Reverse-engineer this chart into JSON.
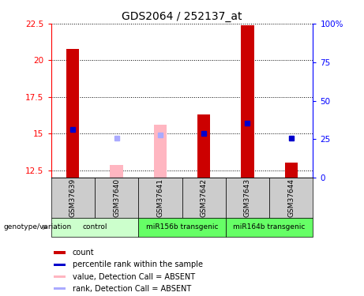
{
  "title": "GDS2064 / 252137_at",
  "samples": [
    "GSM37639",
    "GSM37640",
    "GSM37641",
    "GSM37642",
    "GSM37643",
    "GSM37644"
  ],
  "ylim_left": [
    12.0,
    22.5
  ],
  "ylim_right": [
    0,
    100
  ],
  "yticks_left": [
    12.5,
    15.0,
    17.5,
    20.0,
    22.5
  ],
  "yticks_right": [
    0,
    25,
    50,
    75,
    100
  ],
  "ytick_labels_left": [
    "12.5",
    "15",
    "17.5",
    "20",
    "22.5"
  ],
  "ytick_labels_right": [
    "0",
    "25",
    "50",
    "75",
    "100%"
  ],
  "bar_bottom": 12.0,
  "count_values": [
    20.8,
    null,
    null,
    16.3,
    22.4,
    13.0
  ],
  "count_color": "#cc0000",
  "absent_value_top": [
    null,
    12.85,
    15.6,
    null,
    null,
    null
  ],
  "absent_value_color": "#ffb6c1",
  "rank_values": [
    15.3,
    14.7,
    14.9,
    15.0,
    15.7,
    14.7
  ],
  "rank_is_absent": [
    false,
    true,
    true,
    false,
    false,
    false
  ],
  "rank_present_color": "#0000cc",
  "rank_absent_color": "#aaaaff",
  "groups_def": [
    {
      "label": "control",
      "start": 0,
      "end": 1,
      "color": "#ccffcc"
    },
    {
      "label": "miR156b transgenic",
      "start": 2,
      "end": 3,
      "color": "#66ff66"
    },
    {
      "label": "miR164b transgenic",
      "start": 4,
      "end": 5,
      "color": "#66ff66"
    }
  ],
  "sample_box_color": "#cccccc",
  "legend_items": [
    {
      "label": "count",
      "color": "#cc0000"
    },
    {
      "label": "percentile rank within the sample",
      "color": "#0000cc"
    },
    {
      "label": "value, Detection Call = ABSENT",
      "color": "#ffb6c1"
    },
    {
      "label": "rank, Detection Call = ABSENT",
      "color": "#aaaaff"
    }
  ],
  "genotype_label": "genotype/variation",
  "bar_width": 0.3
}
